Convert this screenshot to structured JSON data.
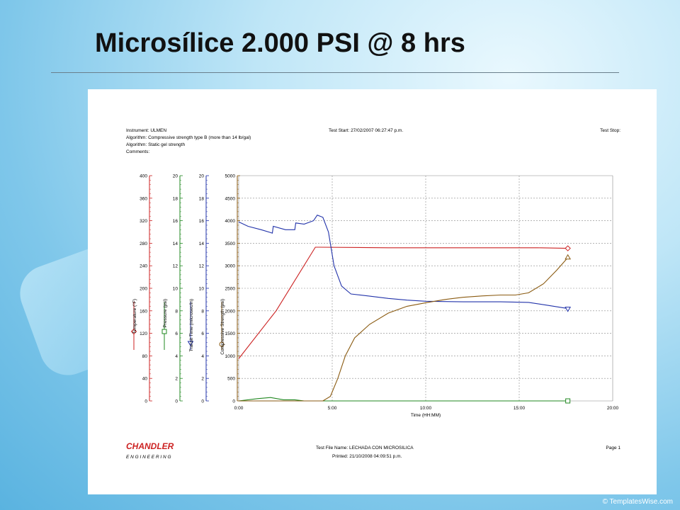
{
  "slide": {
    "title": "Microsílice 2.000 PSI @ 8 hrs",
    "watermark": "© TemplatesWise.com"
  },
  "report": {
    "instrument": "Instrument: ULMEN",
    "algorithm1": "Algorithm: Compressive strength type B (more than 14 lb/gal)",
    "algorithm2": "Algorithm: Static gel strength",
    "comments": "Comments:",
    "test_start": "Test Start: 27/02/2007 06:27:47 p.m.",
    "test_stop": "Test Stop:",
    "brand_name": "CHANDLER",
    "brand_sub": "E N G I N E E R I N G",
    "test_file": "Test File Name: LECHADA CON MICROSILICA",
    "printed": "Printed: 21/10/2008 04:09:51 p.m.",
    "page": "Page 1"
  },
  "colors": {
    "temperature": "#cc2222",
    "pressure": "#228822",
    "transit": "#2233aa",
    "strength": "#8a5a10",
    "grid": "#888888",
    "brand": "#cc2222"
  },
  "chart_data": {
    "type": "line",
    "xlabel": "Time (HH:MM)",
    "x_ticks": [
      "0:00",
      "5:00",
      "10:00",
      "15:00",
      "20:00"
    ],
    "x_range_hours": [
      0,
      20
    ],
    "grid": true,
    "axes": [
      {
        "name": "Temperature (°F)",
        "range": [
          0,
          400
        ],
        "ticks": [
          "0",
          "40",
          "80",
          "120",
          "160",
          "200",
          "240",
          "280",
          "320",
          "360",
          "400"
        ],
        "marker": "diamond",
        "color_key": "temperature"
      },
      {
        "name": "Pressure (psi)",
        "range": [
          0,
          20
        ],
        "ticks": [
          "0",
          "2",
          "4",
          "6",
          "8",
          "10",
          "12",
          "14",
          "16",
          "18",
          "20"
        ],
        "marker": "square",
        "color_key": "pressure"
      },
      {
        "name": "Transit Time (microsec/in)",
        "range": [
          0,
          20
        ],
        "ticks": [
          "0",
          "2",
          "4",
          "6",
          "8",
          "10",
          "12",
          "14",
          "16",
          "18",
          "20"
        ],
        "marker": "triangle-down",
        "color_key": "transit"
      },
      {
        "name": "Compressive Strength (psi)",
        "range": [
          0,
          5000
        ],
        "ticks": [
          "0",
          "500",
          "1000",
          "1500",
          "2000",
          "2500",
          "3000",
          "3500",
          "4000",
          "4500",
          "5000"
        ],
        "marker": "circle",
        "color_key": "strength"
      }
    ],
    "series": [
      {
        "name": "Temperature (°F)",
        "axis": 0,
        "color_key": "temperature",
        "end_marker": "diamond",
        "points": [
          [
            0,
            75
          ],
          [
            2,
            160
          ],
          [
            4.1,
            273
          ],
          [
            4.3,
            273
          ],
          [
            8,
            272
          ],
          [
            12,
            272
          ],
          [
            16,
            272
          ],
          [
            17.6,
            271
          ]
        ]
      },
      {
        "name": "Pressure (psi)",
        "axis": 1,
        "color_key": "pressure",
        "end_marker": "square",
        "points": [
          [
            0,
            0
          ],
          [
            1,
            0.2
          ],
          [
            1.7,
            0.3
          ],
          [
            2.4,
            0.1
          ],
          [
            3,
            0.1
          ],
          [
            3.5,
            0
          ],
          [
            17.6,
            0
          ]
        ]
      },
      {
        "name": "Transit Time (microsec/in)",
        "axis": 2,
        "color_key": "transit",
        "end_marker": "triangle-down",
        "points": [
          [
            0,
            15.9
          ],
          [
            0.5,
            15.5
          ],
          [
            1.2,
            15.2
          ],
          [
            1.8,
            14.9
          ],
          [
            1.85,
            15.5
          ],
          [
            2.5,
            15.2
          ],
          [
            3,
            15.2
          ],
          [
            3.05,
            15.8
          ],
          [
            3.5,
            15.7
          ],
          [
            4.0,
            16
          ],
          [
            4.2,
            16.5
          ],
          [
            4.5,
            16.3
          ],
          [
            4.8,
            15
          ],
          [
            5.1,
            12
          ],
          [
            5.5,
            10.2
          ],
          [
            6,
            9.5
          ],
          [
            7,
            9.3
          ],
          [
            8,
            9.1
          ],
          [
            9,
            8.95
          ],
          [
            10,
            8.85
          ],
          [
            12,
            8.8
          ],
          [
            14,
            8.8
          ],
          [
            15.5,
            8.75
          ],
          [
            16.5,
            8.5
          ],
          [
            17.6,
            8.2
          ]
        ]
      },
      {
        "name": "Compressive Strength (psi)",
        "axis": 3,
        "color_key": "strength",
        "end_marker": "triangle-up",
        "points": [
          [
            0,
            0
          ],
          [
            4.5,
            0
          ],
          [
            4.9,
            100
          ],
          [
            5.3,
            500
          ],
          [
            5.7,
            1000
          ],
          [
            6.2,
            1400
          ],
          [
            7,
            1700
          ],
          [
            8,
            1950
          ],
          [
            9,
            2100
          ],
          [
            10,
            2180
          ],
          [
            11,
            2250
          ],
          [
            12,
            2300
          ],
          [
            13,
            2330
          ],
          [
            14,
            2350
          ],
          [
            14.8,
            2350
          ],
          [
            15.5,
            2400
          ],
          [
            16.3,
            2600
          ],
          [
            17,
            2900
          ],
          [
            17.6,
            3180
          ]
        ]
      }
    ]
  }
}
